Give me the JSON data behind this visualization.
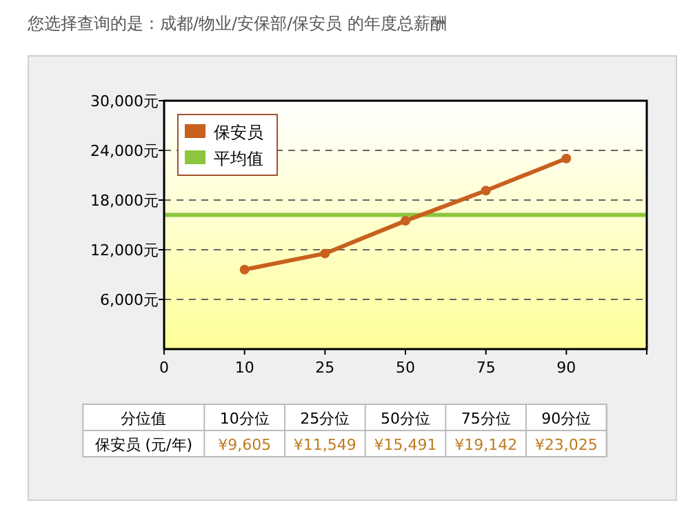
{
  "chart_data": {
    "type": "line",
    "title": "您选择查询的是：成都/物业/安保部/保安员 的年度总薪酬",
    "categories": [
      "0",
      "10",
      "25",
      "50",
      "75",
      "90",
      null
    ],
    "series": [
      {
        "name": "保安员",
        "color": "#c8601e",
        "values": [
          null,
          9605,
          11549,
          15491,
          19142,
          23025,
          null
        ],
        "value_labels": [
          null,
          "¥9,605",
          "¥11,549",
          "¥15,491",
          "¥19,142",
          "¥23,025",
          null
        ]
      }
    ],
    "ylim": [
      0,
      30000
    ],
    "yticks": [
      {
        "value": 6000,
        "label": "6,000元"
      },
      {
        "value": 12000,
        "label": "12,000元"
      },
      {
        "value": 18000,
        "label": "18,000元"
      },
      {
        "value": 24000,
        "label": "24,000元"
      },
      {
        "value": 30000,
        "label": "30,000元"
      }
    ],
    "ref_lines": [
      {
        "axis": "y",
        "value": 16200,
        "label": "平均值",
        "color": "#8cc63e"
      }
    ],
    "grid": "y",
    "legend": "top left",
    "marker": "circle",
    "annotations": [
      "分位值",
      "10分位",
      "25分位",
      "50分位",
      "75分位",
      "90分位",
      "保安员 (元/年)"
    ]
  }
}
